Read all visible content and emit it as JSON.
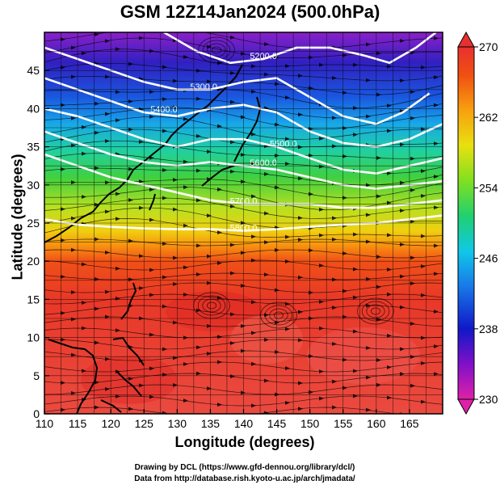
{
  "title": "GSM 12Z14Jan2024 (500.0hPa)",
  "xlabel": "Longitude (degrees)",
  "ylabel": "Latitude (degrees)",
  "credits": {
    "line1": "Drawing by DCL (https://www.gfd-dennou.org/library/dcl/)",
    "line2": "Data from http://database.rish.kyoto-u.ac.jp/arch/jmadata/"
  },
  "map": {
    "lon_range": [
      110,
      170
    ],
    "lat_range": [
      0,
      50
    ],
    "lon_ticks": [
      110,
      115,
      120,
      125,
      130,
      135,
      140,
      145,
      150,
      155,
      160,
      165
    ],
    "lat_ticks": [
      0,
      5,
      10,
      15,
      20,
      25,
      30,
      35,
      40,
      45
    ],
    "grid": true
  },
  "colorbar": {
    "min": 230,
    "max": 270,
    "ticks": [
      230,
      238,
      246,
      254,
      262,
      270
    ],
    "colors": [
      "#e020a8",
      "#8010c8",
      "#1018c8",
      "#1878e8",
      "#10c8e8",
      "#20d070",
      "#80e020",
      "#e8e010",
      "#f8a010",
      "#f05010",
      "#e83030"
    ]
  },
  "contours": [
    {
      "label": "5200.0",
      "label_lon": 143,
      "label_lat": 46.5,
      "points": [
        [
          128,
          50
        ],
        [
          133,
          47.5
        ],
        [
          138,
          46
        ],
        [
          143,
          46.5
        ],
        [
          148,
          48
        ],
        [
          153,
          48
        ],
        [
          158,
          47
        ],
        [
          162,
          46
        ],
        [
          166,
          48
        ],
        [
          169,
          50
        ]
      ]
    },
    {
      "label": "5300.0",
      "label_lon": 134,
      "label_lat": 42.5,
      "points": [
        [
          110,
          48
        ],
        [
          115,
          46.5
        ],
        [
          120,
          45
        ],
        [
          125,
          43.5
        ],
        [
          130,
          42.5
        ],
        [
          135,
          42.5
        ],
        [
          140,
          43.5
        ],
        [
          145,
          44
        ],
        [
          150,
          41.5
        ],
        [
          155,
          39
        ],
        [
          160,
          38
        ],
        [
          164,
          39.5
        ],
        [
          168,
          42
        ]
      ]
    },
    {
      "label": "5400.0",
      "label_lon": 128,
      "label_lat": 39.5,
      "points": [
        [
          110,
          44
        ],
        [
          115,
          42.5
        ],
        [
          120,
          41
        ],
        [
          125,
          39.5
        ],
        [
          130,
          39
        ],
        [
          135,
          40
        ],
        [
          140,
          40.5
        ],
        [
          145,
          39.5
        ],
        [
          150,
          37
        ],
        [
          155,
          35.5
        ],
        [
          160,
          35
        ],
        [
          165,
          36
        ],
        [
          170,
          38
        ]
      ]
    },
    {
      "label": "5500.0",
      "label_lon": 146,
      "label_lat": 35,
      "points": [
        [
          110,
          40
        ],
        [
          115,
          39
        ],
        [
          120,
          37.5
        ],
        [
          125,
          36
        ],
        [
          130,
          35
        ],
        [
          135,
          36
        ],
        [
          140,
          36
        ],
        [
          145,
          35
        ],
        [
          150,
          33.5
        ],
        [
          155,
          32
        ],
        [
          160,
          31.5
        ],
        [
          165,
          32.5
        ],
        [
          170,
          33.5
        ]
      ]
    },
    {
      "label": "5600.0",
      "label_lon": 143,
      "label_lat": 32.5,
      "points": [
        [
          110,
          37
        ],
        [
          115,
          35.5
        ],
        [
          120,
          34
        ],
        [
          125,
          33
        ],
        [
          130,
          32.5
        ],
        [
          135,
          33
        ],
        [
          140,
          32.5
        ],
        [
          145,
          32
        ],
        [
          150,
          31
        ],
        [
          155,
          30
        ],
        [
          160,
          29.5
        ],
        [
          165,
          30
        ],
        [
          170,
          30.5
        ]
      ]
    },
    {
      "label": "5700.0",
      "label_lon": 140,
      "label_lat": 27.5,
      "points": [
        [
          110,
          34
        ],
        [
          115,
          32.5
        ],
        [
          120,
          31
        ],
        [
          125,
          30
        ],
        [
          130,
          29
        ],
        [
          135,
          28
        ],
        [
          140,
          27.5
        ],
        [
          145,
          27.5
        ],
        [
          150,
          27.5
        ],
        [
          155,
          27
        ],
        [
          160,
          27
        ],
        [
          165,
          27.5
        ],
        [
          170,
          28
        ]
      ]
    },
    {
      "label": "5800.0",
      "label_lon": 140,
      "label_lat": 24,
      "points": [
        [
          110,
          25.5
        ],
        [
          115,
          24.8
        ],
        [
          120,
          24.5
        ],
        [
          125,
          24.3
        ],
        [
          130,
          24.2
        ],
        [
          135,
          24.2
        ],
        [
          140,
          24
        ],
        [
          145,
          24.2
        ],
        [
          150,
          24.5
        ],
        [
          155,
          24.8
        ],
        [
          160,
          25
        ],
        [
          165,
          25.5
        ],
        [
          170,
          26
        ]
      ]
    }
  ]
}
